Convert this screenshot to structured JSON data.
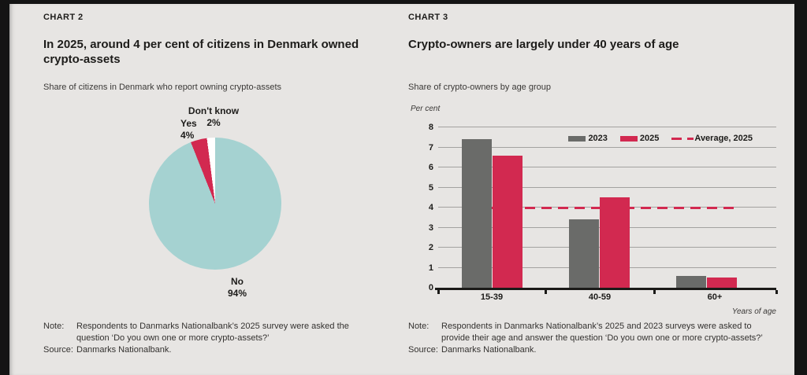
{
  "page_bg": "#e7e5e3",
  "frame_color": "#141414",
  "colors": {
    "accent_red": "#d22950",
    "bar_grey": "#6a6b69",
    "pie_teal": "#a5d2d1",
    "text_dark": "#1d1c1a",
    "gridline_grey": "#a3a2a0"
  },
  "chart2": {
    "label": "CHART 2",
    "title": "In 2025, around 4 per cent of citizens in Denmark owned crypto-assets",
    "subtitle": "Share of citizens in Denmark who report owning crypto-assets",
    "note_label": "Note:",
    "note_text": "Respondents to Danmarks Nationalbank’s 2025 survey were asked the question ‘Do you own one or more crypto-assets?’",
    "source_label": "Source:",
    "source_text": "Danmarks Nationalbank."
  },
  "chart3": {
    "label": "CHART 3",
    "title": "Crypto-owners are largely under 40 years of age",
    "subtitle": "Share of crypto-owners by age group",
    "note_label": "Note:",
    "note_text": "Respondents in Danmarks Nationalbank’s 2025 and 2023 surveys were asked to provide their age and answer the question ‘Do you own one or more crypto-assets?’",
    "source_label": "Source:",
    "source_text": "Danmarks Nationalbank."
  },
  "chart_data": [
    {
      "type": "pie",
      "title": "Share of citizens in Denmark who report owning crypto-assets",
      "start_angle_deg": 0,
      "direction": "clockwise",
      "slices": [
        {
          "label": "No",
          "value": 94,
          "display": "94%",
          "color": "#a5d2d1"
        },
        {
          "label": "Yes",
          "value": 4,
          "display": "4%",
          "color": "#d22950"
        },
        {
          "label": "Don't know",
          "value": 2,
          "display": "2%",
          "color": "#ffffff"
        }
      ]
    },
    {
      "type": "bar",
      "title": "Share of crypto-owners by age group",
      "categories": [
        "15-39",
        "40-59",
        "60+"
      ],
      "series": [
        {
          "name": "2023",
          "color": "#6a6b69",
          "values": [
            7.4,
            3.4,
            0.6
          ]
        },
        {
          "name": "2025",
          "color": "#d22950",
          "values": [
            6.6,
            4.5,
            0.5
          ]
        }
      ],
      "average_line": {
        "name": "Average, 2025",
        "value": 4.0,
        "color": "#d22950",
        "style": "dashed"
      },
      "ylabel": "Per cent",
      "xlabel": "Years of age",
      "ylim": [
        0,
        8
      ],
      "yticks": [
        0,
        1,
        2,
        3,
        4,
        5,
        6,
        7,
        8
      ],
      "grid": true,
      "legend_position": "top-right"
    }
  ]
}
